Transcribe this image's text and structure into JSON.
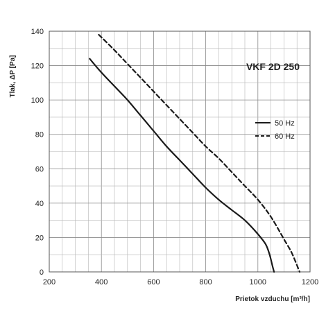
{
  "chart_data": {
    "type": "line",
    "title": "VKF 2D 250",
    "xlabel": "Prietok vzduchu [m³/h]",
    "ylabel": "Tlak, ΔP [Pa]",
    "xlim": [
      200,
      1200
    ],
    "ylim": [
      0,
      140
    ],
    "xticks": [
      200,
      400,
      600,
      800,
      1000,
      1200
    ],
    "yticks": [
      0,
      20,
      40,
      60,
      80,
      100,
      120,
      140
    ],
    "grid": true,
    "legend_position": "right",
    "series": [
      {
        "name": "50 Hz",
        "style": "solid",
        "color": "#1a1a1a",
        "x": [
          355,
          400,
          450,
          500,
          550,
          600,
          650,
          700,
          750,
          800,
          850,
          900,
          950,
          1000,
          1030,
          1045,
          1055,
          1062
        ],
        "y": [
          124,
          116,
          108,
          100,
          91,
          82,
          73,
          65,
          57,
          49,
          42,
          36,
          30,
          22,
          16,
          10,
          4,
          0
        ]
      },
      {
        "name": "60 Hz",
        "style": "dashed",
        "color": "#1a1a1a",
        "x": [
          390,
          450,
          500,
          550,
          600,
          650,
          700,
          750,
          800,
          850,
          900,
          950,
          1000,
          1050,
          1100,
          1130,
          1160
        ],
        "y": [
          138,
          129,
          121,
          113,
          105,
          97,
          89,
          81,
          73,
          66,
          58,
          50,
          42,
          32,
          19,
          11,
          0
        ]
      }
    ]
  }
}
